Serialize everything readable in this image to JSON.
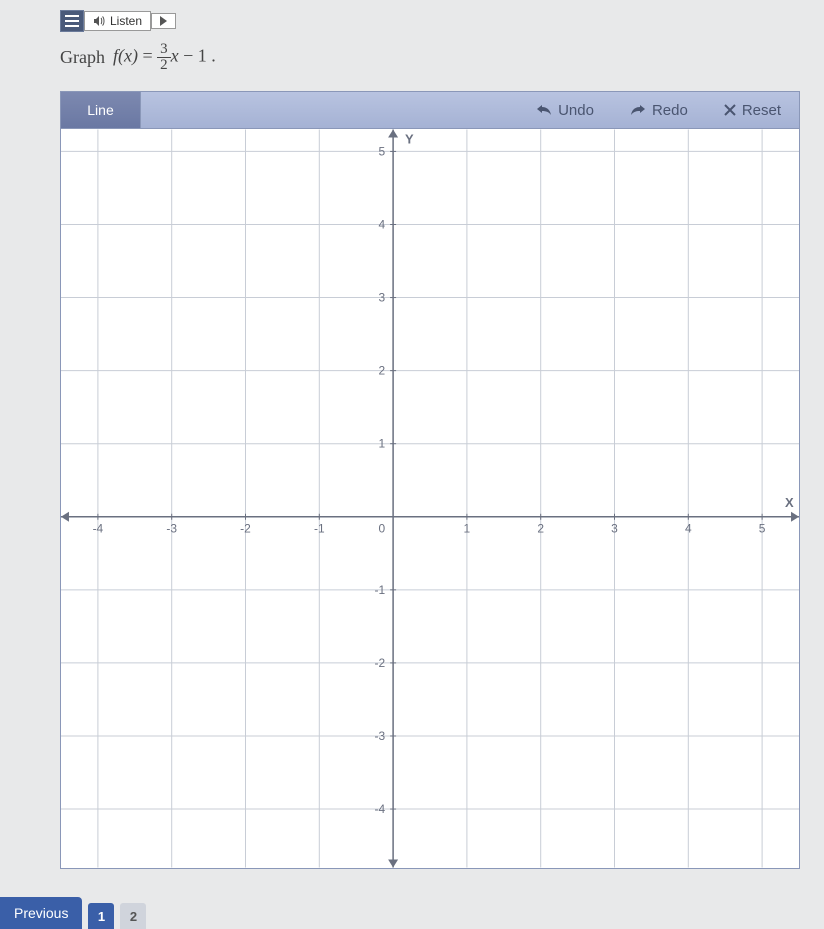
{
  "header": {
    "listen_label": "Listen"
  },
  "prompt": {
    "lead": "Graph",
    "func": "f(x)",
    "equals": "=",
    "frac_num": "3",
    "frac_den": "2",
    "var": "x",
    "tail": "− 1 ."
  },
  "toolbar": {
    "line_label": "Line",
    "undo_label": "Undo",
    "redo_label": "Redo",
    "reset_label": "Reset"
  },
  "graph": {
    "xmin": -4.5,
    "xmax": 5.5,
    "ymin": -4.8,
    "ymax": 5.3,
    "xtick_min": -4,
    "xtick_max": 5,
    "xtick_step": 1,
    "ytick_min": -4,
    "ytick_max": 5,
    "ytick_step": 1,
    "x_axis_label": "X",
    "y_axis_label": "Y",
    "origin_label": "0",
    "grid_color": "#c8cdd6",
    "axis_color": "#6a7080",
    "tick_font_color": "#6a7080",
    "background": "#ffffff",
    "tick_fontsize": 12
  },
  "footer": {
    "previous_label": "Previous",
    "pages": [
      "1",
      "2"
    ]
  }
}
